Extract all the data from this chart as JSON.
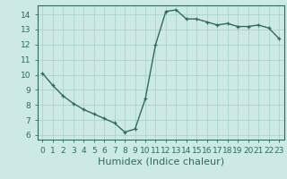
{
  "x": [
    0,
    1,
    2,
    3,
    4,
    5,
    6,
    7,
    8,
    9,
    10,
    11,
    12,
    13,
    14,
    15,
    16,
    17,
    18,
    19,
    20,
    21,
    22,
    23
  ],
  "y": [
    10.1,
    9.3,
    8.6,
    8.1,
    7.7,
    7.4,
    7.1,
    6.8,
    6.2,
    6.4,
    8.4,
    12.0,
    14.2,
    14.3,
    13.7,
    13.7,
    13.5,
    13.3,
    13.4,
    13.2,
    13.2,
    13.3,
    13.1,
    12.4
  ],
  "line_color": "#2d6b5e",
  "marker": "+",
  "marker_size": 3.5,
  "line_width": 1.0,
  "background_color": "#cce9e5",
  "grid_color": "#aad4cf",
  "xlabel": "Humidex (Indice chaleur)",
  "xlabel_fontsize": 8,
  "ylim": [
    5.7,
    14.6
  ],
  "xlim": [
    -0.5,
    23.5
  ],
  "yticks": [
    6,
    7,
    8,
    9,
    10,
    11,
    12,
    13,
    14
  ],
  "xtick_labels": [
    "0",
    "1",
    "2",
    "3",
    "4",
    "5",
    "6",
    "7",
    "8",
    "9",
    "10",
    "11",
    "12",
    "13",
    "14",
    "15",
    "16",
    "17",
    "18",
    "19",
    "20",
    "21",
    "22",
    "23"
  ],
  "tick_fontsize": 6.5,
  "tick_color": "#2d6b5e",
  "axis_color": "#2d6b5e",
  "label_color": "#2d6b5e"
}
